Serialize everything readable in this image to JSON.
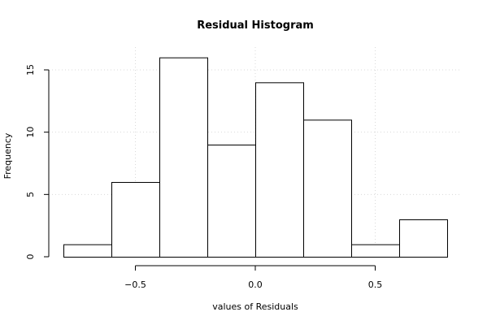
{
  "chart_data": {
    "type": "bar",
    "title": "Residual Histogram",
    "xlabel": "values of Residuals",
    "ylabel": "Frequency",
    "bins": [
      {
        "from": -0.8,
        "to": -0.6,
        "count": 1
      },
      {
        "from": -0.6,
        "to": -0.4,
        "count": 6
      },
      {
        "from": -0.4,
        "to": -0.2,
        "count": 16
      },
      {
        "from": -0.2,
        "to": 0.0,
        "count": 9
      },
      {
        "from": 0.0,
        "to": 0.2,
        "count": 14
      },
      {
        "from": 0.2,
        "to": 0.4,
        "count": 11
      },
      {
        "from": 0.4,
        "to": 0.6,
        "count": 1
      },
      {
        "from": 0.6,
        "to": 0.8,
        "count": 3
      }
    ],
    "xlim": [
      -0.8,
      0.8
    ],
    "ylim": [
      0,
      16
    ],
    "x_ticks": [
      -0.5,
      0.0,
      0.5
    ],
    "x_tick_labels": [
      "−0.5",
      "0.0",
      "0.5"
    ],
    "y_ticks": [
      0,
      5,
      10,
      15
    ],
    "y_tick_labels": [
      "0",
      "5",
      "10",
      "15"
    ],
    "grid": true,
    "bar_fill": "#ffffff",
    "bar_stroke": "#000000",
    "grid_color": "#d9d9d9"
  }
}
